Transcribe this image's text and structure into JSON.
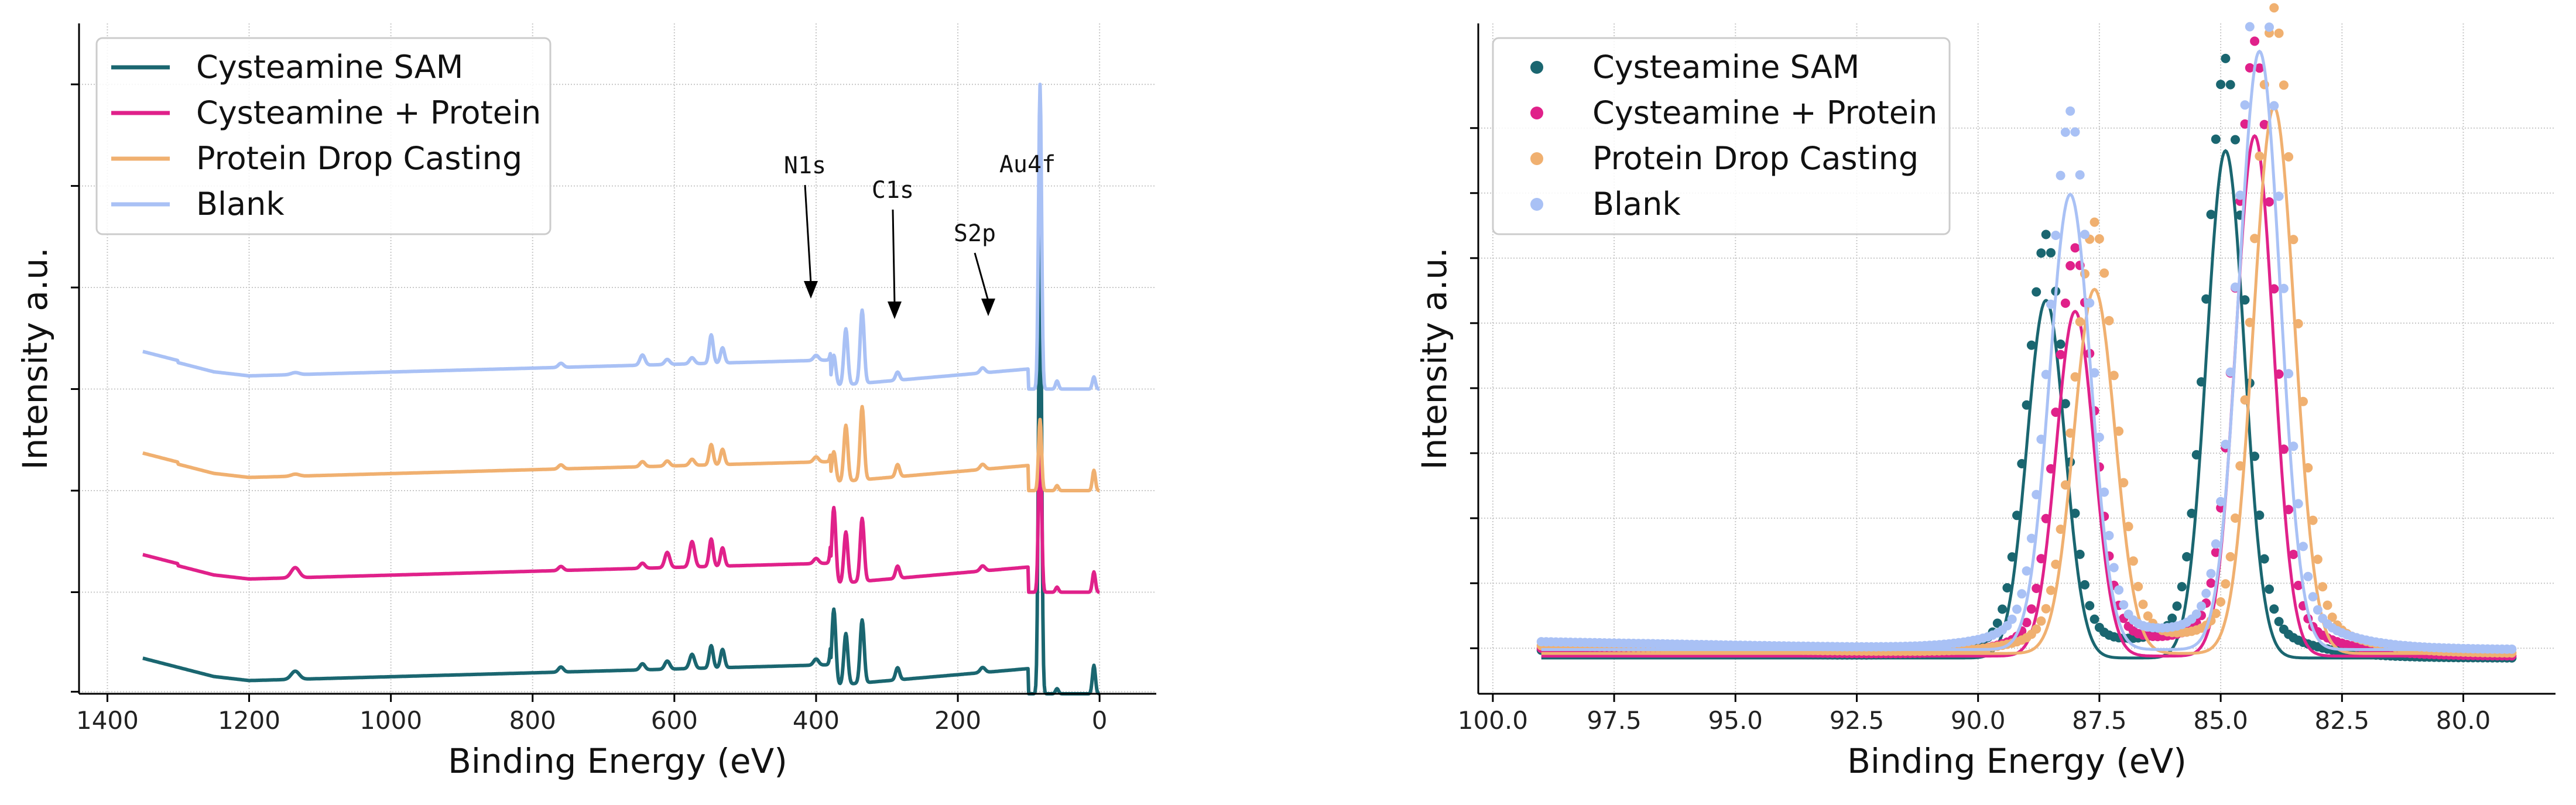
{
  "colors": {
    "Cysteamine SAM": "#1a6670",
    "Cysteamine + Protein": "#e0218a",
    "Protein Drop Casting": "#f0b070",
    "Blank": "#a9c1f5"
  },
  "chart_data": [
    {
      "type": "line",
      "title": "",
      "xlabel": "Binding Energy (eV)",
      "ylabel": "Intensity a.u.",
      "xlim": [
        1440,
        -80
      ],
      "x_reversed": true,
      "y_ticks_labeled": false,
      "grid": true,
      "legend_position": "upper-left",
      "x_ticks": [
        "1400",
        "1200",
        "1000",
        "800",
        "600",
        "400",
        "200",
        "0"
      ],
      "series": [
        {
          "name": "Cysteamine SAM",
          "offset": 0
        },
        {
          "name": "Cysteamine + Protein",
          "offset": 1
        },
        {
          "name": "Protein Drop Casting",
          "offset": 2
        },
        {
          "name": "Blank",
          "offset": 3
        }
      ],
      "peaks_eV": [
        1135,
        760,
        645,
        610,
        575,
        548,
        532,
        400,
        375,
        358,
        335,
        285,
        165,
        84,
        60,
        8
      ],
      "annotations": [
        {
          "text": "N1s",
          "x": 400
        },
        {
          "text": "C1s",
          "x": 285
        },
        {
          "text": "S2p",
          "x": 165
        },
        {
          "text": "Au4f",
          "x": 84
        }
      ]
    },
    {
      "type": "scatter",
      "title": "",
      "xlabel": "Binding Energy (eV)",
      "ylabel": "Intensity a.u.",
      "xlim": [
        100.3,
        78.1
      ],
      "x_reversed": true,
      "y_ticks_labeled": false,
      "grid": true,
      "legend_position": "upper-left",
      "x_ticks": [
        "100.0",
        "97.5",
        "95.0",
        "92.5",
        "90.0",
        "87.5",
        "85.0",
        "82.5",
        "80.0"
      ],
      "series": [
        {
          "name": "Cysteamine SAM",
          "peaks_eV": [
            88.6,
            84.9
          ],
          "heights": [
            0.55,
            0.78
          ]
        },
        {
          "name": "Cysteamine + Protein",
          "peaks_eV": [
            88.0,
            84.3
          ],
          "heights": [
            0.53,
            0.8
          ]
        },
        {
          "name": "Protein Drop Casting",
          "peaks_eV": [
            87.6,
            83.9
          ],
          "heights": [
            0.56,
            0.84
          ]
        },
        {
          "name": "Blank",
          "peaks_eV": [
            88.1,
            84.2
          ],
          "heights": [
            0.7,
            0.92
          ]
        }
      ]
    }
  ]
}
